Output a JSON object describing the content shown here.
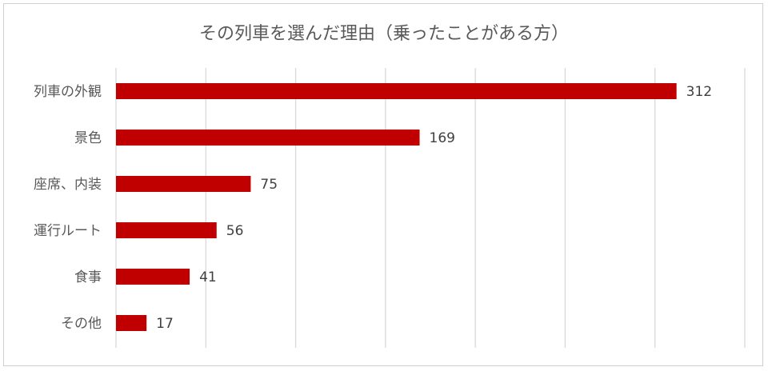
{
  "chart_data": {
    "type": "bar",
    "orientation": "horizontal",
    "title": "その列車を選んだ理由（乗ったことがある方）",
    "categories": [
      "列車の外観",
      "景色",
      "座席、内装",
      "運行ルート",
      "食事",
      "その他"
    ],
    "values": [
      312,
      169,
      75,
      56,
      41,
      17
    ],
    "xlim": [
      0,
      350
    ],
    "grid": true,
    "legend": "none",
    "data_labels": true,
    "bar_color": "#C00000"
  }
}
